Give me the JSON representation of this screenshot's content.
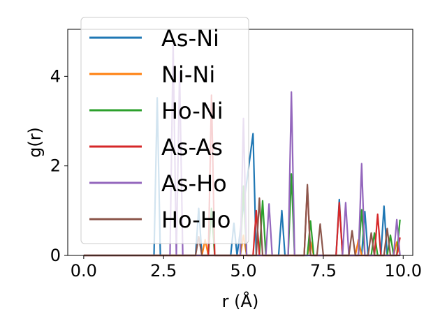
{
  "chart_data": {
    "type": "line",
    "xlabel": "r (Å)",
    "ylabel": "g(r)",
    "xlim": [
      -0.5,
      10.3
    ],
    "ylim": [
      0,
      5.05
    ],
    "xticks": [
      0.0,
      2.5,
      5.0,
      7.5,
      10.0
    ],
    "xtick_labels": [
      "0.0",
      "2.5",
      "5.0",
      "7.5",
      "10.0"
    ],
    "yticks": [
      0,
      2,
      4
    ],
    "ytick_labels": [
      "0",
      "2",
      "4"
    ],
    "grid": false,
    "legend_position": "top-left",
    "series": [
      {
        "name": "As-Ni",
        "color": "#1f77b4",
        "x": [
          0.0,
          2.2,
          2.3,
          2.4,
          3.5,
          3.6,
          3.7,
          4.6,
          4.7,
          4.8,
          5.3,
          5.4,
          5.5,
          6.1,
          6.2,
          6.3,
          7.9,
          8.0,
          8.1,
          8.7,
          8.8,
          8.9,
          9.3,
          9.4,
          9.5,
          9.9
        ],
        "y": [
          0.0,
          0.0,
          3.52,
          0.0,
          0.0,
          1.05,
          0.0,
          0.0,
          0.72,
          0.0,
          2.72,
          0.0,
          0.0,
          0.0,
          1.0,
          0.0,
          0.0,
          1.25,
          0.0,
          0.0,
          0.98,
          0.0,
          0.0,
          1.1,
          0.0,
          0.0
        ]
      },
      {
        "name": "Ni-Ni",
        "color": "#ff7f0e",
        "x": [
          0.0,
          3.7,
          3.8,
          3.9,
          4.9,
          5.0,
          5.1,
          7.0,
          7.1,
          7.2,
          8.5,
          8.6,
          8.7,
          9.7,
          9.8,
          9.9
        ],
        "y": [
          0.0,
          0.0,
          0.35,
          0.0,
          0.0,
          0.45,
          0.0,
          0.0,
          0.3,
          0.0,
          0.0,
          0.35,
          0.0,
          0.0,
          0.3,
          0.0
        ]
      },
      {
        "name": "Ho-Ni",
        "color": "#2ca02c",
        "x": [
          0.0,
          3.9,
          4.0,
          4.1,
          4.9,
          5.0,
          5.1,
          5.5,
          5.6,
          5.7,
          6.4,
          6.5,
          6.6,
          7.0,
          7.1,
          7.2,
          8.6,
          8.7,
          8.8,
          9.0,
          9.1,
          9.2,
          9.5,
          9.6,
          9.7,
          9.8,
          9.9
        ],
        "y": [
          0.0,
          0.0,
          1.05,
          0.0,
          0.0,
          1.55,
          0.0,
          0.0,
          1.22,
          0.0,
          0.0,
          1.82,
          0.0,
          0.0,
          0.77,
          0.0,
          0.0,
          1.02,
          0.0,
          0.0,
          0.5,
          0.0,
          0.0,
          0.45,
          0.0,
          0.0,
          0.8
        ]
      },
      {
        "name": "As-As",
        "color": "#d62728",
        "x": [
          0.0,
          3.9,
          4.0,
          4.1,
          5.3,
          5.4,
          5.5,
          6.9,
          7.0,
          7.1,
          7.2,
          7.9,
          8.0,
          8.1,
          8.2,
          9.1,
          9.2,
          9.3,
          9.8,
          9.9
        ],
        "y": [
          0.0,
          0.0,
          3.58,
          0.0,
          0.0,
          1.0,
          0.0,
          0.0,
          1.52,
          0.0,
          0.0,
          0.0,
          1.18,
          0.0,
          0.0,
          0.0,
          0.92,
          0.0,
          0.0,
          0.4
        ]
      },
      {
        "name": "As-Ho",
        "color": "#9467bd",
        "x": [
          0.0,
          2.7,
          2.8,
          2.9,
          3.0,
          3.1,
          4.9,
          5.0,
          5.1,
          5.7,
          5.8,
          5.9,
          6.4,
          6.5,
          6.6,
          8.1,
          8.2,
          8.3,
          8.6,
          8.7,
          8.8,
          9.7,
          9.8,
          9.9
        ],
        "y": [
          0.0,
          0.0,
          4.7,
          0.0,
          4.1,
          0.0,
          0.0,
          3.06,
          0.0,
          0.0,
          1.15,
          0.0,
          0.0,
          3.65,
          0.0,
          0.0,
          1.18,
          0.0,
          0.0,
          2.05,
          0.0,
          0.0,
          0.8,
          0.0
        ]
      },
      {
        "name": "Ho-Ho",
        "color": "#8c564b",
        "x": [
          0.0,
          3.5,
          3.6,
          3.7,
          5.4,
          5.5,
          5.6,
          6.9,
          7.0,
          7.1,
          7.3,
          7.4,
          7.5,
          8.3,
          8.4,
          8.5,
          8.9,
          9.0,
          9.1,
          9.4,
          9.5,
          9.6,
          9.9
        ],
        "y": [
          0.0,
          0.0,
          0.42,
          0.0,
          0.0,
          1.28,
          0.0,
          0.0,
          1.58,
          0.0,
          0.0,
          0.7,
          0.0,
          0.0,
          0.55,
          0.0,
          0.0,
          0.5,
          0.0,
          0.0,
          0.6,
          0.0,
          0.0
        ]
      }
    ]
  }
}
